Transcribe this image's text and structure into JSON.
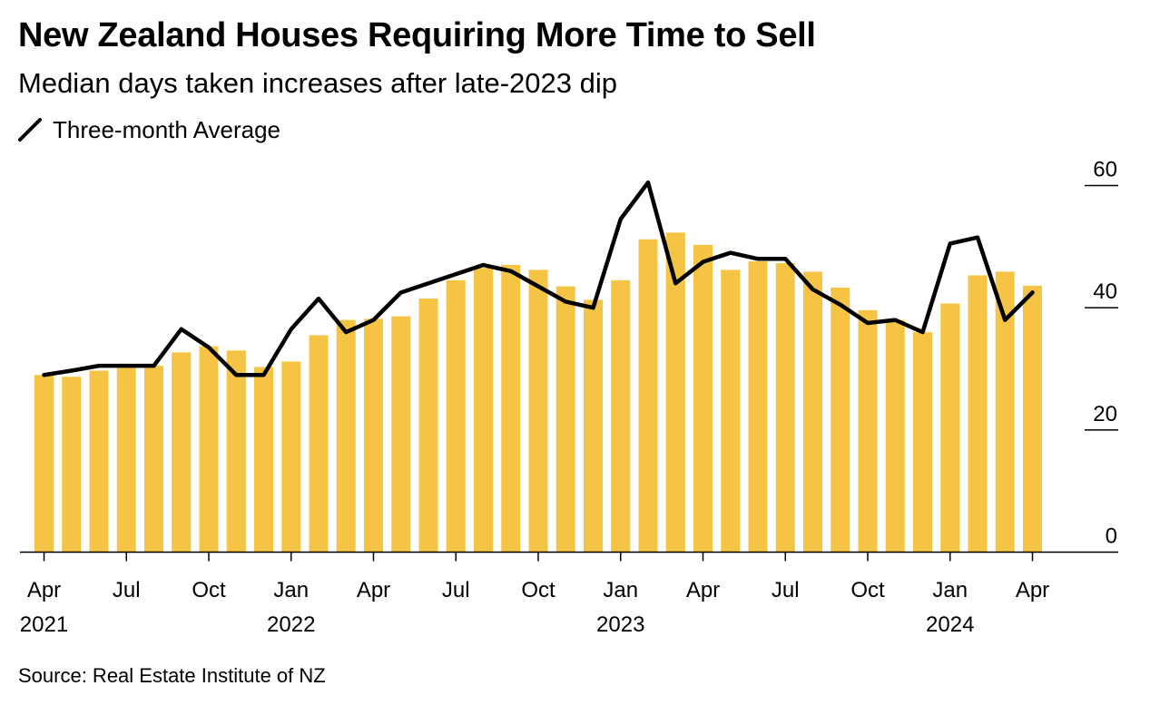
{
  "header": {
    "title": "New Zealand Houses Requiring More Time to Sell",
    "subtitle": "Median days taken increases after late-2023 dip"
  },
  "legend": {
    "label": "Three-month Average"
  },
  "footer": {
    "source": "Source: Real Estate Institute of NZ"
  },
  "colors": {
    "bar": "#f6c444",
    "line": "#000000",
    "axis": "#000000"
  },
  "chart_data": {
    "type": "bar",
    "title": "New Zealand Houses Requiring More Time to Sell",
    "subtitle": "Median days taken increases after late-2023 dip",
    "xlabel": "",
    "ylabel": "",
    "ylim": [
      0,
      60
    ],
    "yticks": [
      0,
      20,
      40,
      60
    ],
    "grid": false,
    "legend_position": "top-left",
    "categories": [
      "Apr 2021",
      "May 2021",
      "Jun 2021",
      "Jul 2021",
      "Aug 2021",
      "Sep 2021",
      "Oct 2021",
      "Nov 2021",
      "Dec 2021",
      "Jan 2022",
      "Feb 2022",
      "Mar 2022",
      "Apr 2022",
      "May 2022",
      "Jun 2022",
      "Jul 2022",
      "Aug 2022",
      "Sep 2022",
      "Oct 2022",
      "Nov 2022",
      "Dec 2022",
      "Jan 2023",
      "Feb 2023",
      "Mar 2023",
      "Apr 2023",
      "May 2023",
      "Jun 2023",
      "Jul 2023",
      "Aug 2023",
      "Sep 2023",
      "Oct 2023",
      "Nov 2023",
      "Dec 2023",
      "Jan 2024",
      "Feb 2024",
      "Mar 2024",
      "Apr 2024"
    ],
    "x_tick_labels": [
      {
        "index": 0,
        "month": "Apr",
        "year": "2021"
      },
      {
        "index": 3,
        "month": "Jul",
        "year": ""
      },
      {
        "index": 6,
        "month": "Oct",
        "year": ""
      },
      {
        "index": 9,
        "month": "Jan",
        "year": "2022"
      },
      {
        "index": 12,
        "month": "Apr",
        "year": ""
      },
      {
        "index": 15,
        "month": "Jul",
        "year": ""
      },
      {
        "index": 18,
        "month": "Oct",
        "year": ""
      },
      {
        "index": 21,
        "month": "Jan",
        "year": "2023"
      },
      {
        "index": 24,
        "month": "Apr",
        "year": ""
      },
      {
        "index": 27,
        "month": "Jul",
        "year": ""
      },
      {
        "index": 30,
        "month": "Oct",
        "year": ""
      },
      {
        "index": 33,
        "month": "Jan",
        "year": "2024"
      },
      {
        "index": 36,
        "month": "Apr",
        "year": ""
      }
    ],
    "series": [
      {
        "type": "bar",
        "values": [
          29,
          28.7,
          29.7,
          30.5,
          30.5,
          32.7,
          33.7,
          33,
          30.3,
          31.2,
          35.5,
          38,
          38.2,
          38.6,
          41.5,
          44.5,
          46.5,
          47,
          46.2,
          43.5,
          41.3,
          44.5,
          51.2,
          52.3,
          50.3,
          46.2,
          47.6,
          47.3,
          45.9,
          43.3,
          39.6,
          38,
          36,
          40.7,
          45.3,
          45.9,
          43.6
        ]
      },
      {
        "type": "line",
        "name": "Three-month Average",
        "values": [
          29,
          29.7,
          30.5,
          30.5,
          30.5,
          36.5,
          33.5,
          29,
          29,
          36.5,
          41.5,
          36,
          38,
          42.5,
          44,
          45.5,
          47,
          46,
          43.5,
          41,
          40,
          54.5,
          60.5,
          44,
          47.5,
          49,
          48,
          48,
          43,
          40.5,
          37.5,
          38,
          36,
          50.5,
          51.5,
          38,
          42.5
        ]
      }
    ]
  }
}
